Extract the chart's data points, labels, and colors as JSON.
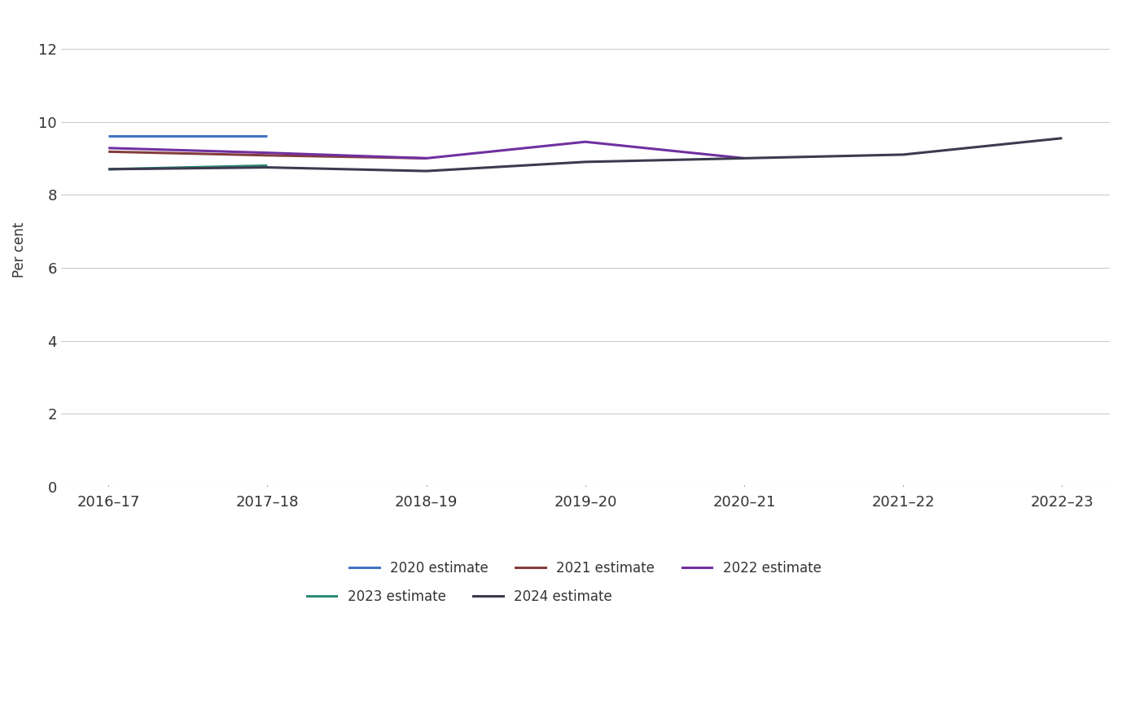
{
  "x_labels": [
    "2016–17",
    "2017–18",
    "2018–19",
    "2019–20",
    "2020–21",
    "2021–22",
    "2022–23"
  ],
  "x_positions": [
    0,
    1,
    2,
    3,
    4,
    5,
    6
  ],
  "series": [
    {
      "label": "2020 estimate",
      "color": "#4472C4",
      "x": [
        0,
        1
      ],
      "y": [
        9.62,
        9.62
      ]
    },
    {
      "label": "2021 estimate",
      "color": "#843C3C",
      "x": [
        0,
        1,
        2
      ],
      "y": [
        9.18,
        9.08,
        9.0
      ]
    },
    {
      "label": "2022 estimate",
      "color": "#7030A0",
      "x": [
        0,
        1,
        2,
        3,
        4
      ],
      "y": [
        9.28,
        9.15,
        9.0,
        9.45,
        9.0
      ]
    },
    {
      "label": "2023 estimate",
      "color": "#2E8B74",
      "x": [
        0,
        1
      ],
      "y": [
        8.7,
        8.8
      ]
    },
    {
      "label": "2024 estimate",
      "color": "#3B3B4F",
      "x": [
        0,
        1,
        2,
        3,
        4,
        5,
        6
      ],
      "y": [
        8.7,
        8.75,
        8.65,
        8.9,
        9.0,
        9.1,
        9.55
      ]
    }
  ],
  "ylabel": "Per cent",
  "ylim": [
    0,
    13.0
  ],
  "yticks": [
    0,
    2,
    4,
    6,
    8,
    10,
    12
  ],
  "background_color": "#ffffff",
  "grid_color": "#cccccc",
  "line_width": 2.2,
  "legend_fontsize": 12,
  "axis_fontsize": 12,
  "tick_fontsize": 13
}
